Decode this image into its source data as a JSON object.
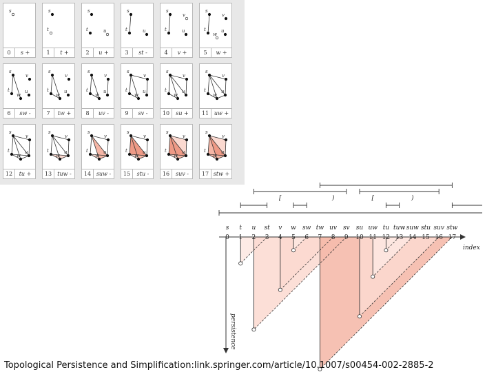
{
  "cells": [
    {
      "index": "0",
      "label": "s +"
    },
    {
      "index": "1",
      "label": "t +"
    },
    {
      "index": "2",
      "label": "u +"
    },
    {
      "index": "3",
      "label": "st -"
    },
    {
      "index": "4",
      "label": "v +"
    },
    {
      "index": "5",
      "label": "w +"
    },
    {
      "index": "6",
      "label": "sw -"
    },
    {
      "index": "7",
      "label": "tw +"
    },
    {
      "index": "8",
      "label": "uv -"
    },
    {
      "index": "9",
      "label": "sv -"
    },
    {
      "index": "10",
      "label": "su +"
    },
    {
      "index": "11",
      "label": "uw +"
    },
    {
      "index": "12",
      "label": "tu +"
    },
    {
      "index": "13",
      "label": "tuw -"
    },
    {
      "index": "14",
      "label": "suw -"
    },
    {
      "index": "15",
      "label": "stu -"
    },
    {
      "index": "16",
      "label": "suv -"
    },
    {
      "index": "17",
      "label": "stw +"
    }
  ],
  "vertex_names": [
    "s",
    "t",
    "u",
    "v",
    "w"
  ],
  "columns": [
    {
      "name": "s",
      "index": "0"
    },
    {
      "name": "t",
      "index": "1"
    },
    {
      "name": "u",
      "index": "2"
    },
    {
      "name": "st",
      "index": "3"
    },
    {
      "name": "v",
      "index": "4"
    },
    {
      "name": "w",
      "index": "5"
    },
    {
      "name": "sw",
      "index": "6"
    },
    {
      "name": "tw",
      "index": "7"
    },
    {
      "name": "uv",
      "index": "8"
    },
    {
      "name": "sv",
      "index": "9"
    },
    {
      "name": "su",
      "index": "10"
    },
    {
      "name": "uw",
      "index": "11"
    },
    {
      "name": "tu",
      "index": "12"
    },
    {
      "name": "tuw",
      "index": "13"
    },
    {
      "name": "suw",
      "index": "14"
    },
    {
      "name": "stu",
      "index": "15"
    },
    {
      "name": "suv",
      "index": "16"
    },
    {
      "name": "stw",
      "index": "17"
    }
  ],
  "axis": {
    "x_label": "index",
    "y_label": "persistence"
  },
  "bracket_labels": [
    "[",
    ")",
    "[",
    ")"
  ],
  "colors": {
    "fill_light": "#fbd9d0",
    "fill_mid": "#f5b6a6",
    "fill_strong": "#ee9a86",
    "line": "#333333"
  },
  "footer": "Topological Persistence and Simplification:link.springer.com/article/10.1007/s00454-002-2885-2"
}
